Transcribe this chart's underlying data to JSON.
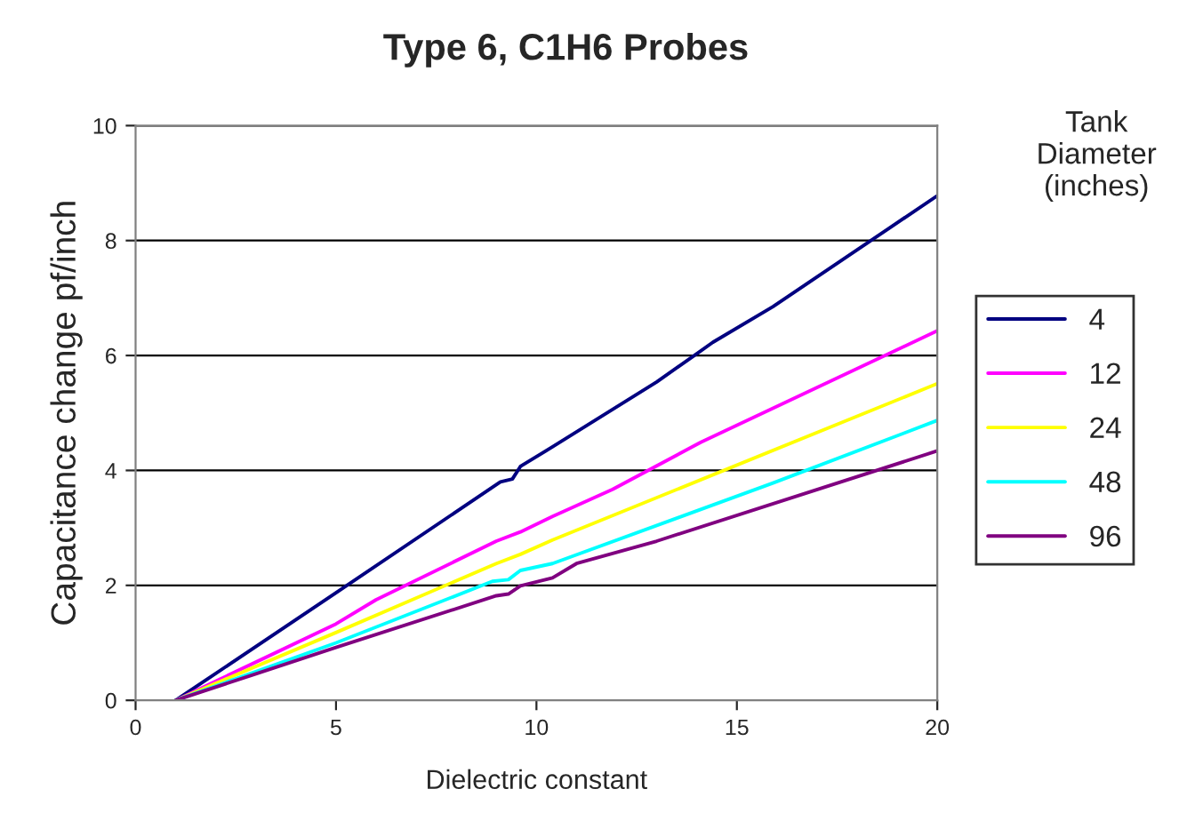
{
  "chart_data": {
    "type": "line",
    "title": "Type 6, C1H6 Probes",
    "xlabel": "Dielectric constant",
    "ylabel": "Capacitance change pf/inch",
    "legend_title": "Tank\nDiameter\n(inches)",
    "xlim": [
      0,
      20
    ],
    "ylim": [
      0,
      10
    ],
    "xticks": [
      0,
      5,
      10,
      15,
      20
    ],
    "yticks": [
      0,
      2,
      4,
      6,
      8,
      10
    ],
    "grid": "y",
    "legend": "right",
    "series": [
      {
        "name": "4",
        "color": "#000080",
        "x": [
          1,
          5,
          9.1,
          9.4,
          9.6,
          10.4,
          13,
          14,
          14.4,
          15.9,
          20
        ],
        "values": [
          0,
          1.87,
          3.8,
          3.85,
          4.07,
          4.41,
          5.54,
          6.03,
          6.23,
          6.85,
          8.78
        ]
      },
      {
        "name": "12",
        "color": "#ff00ff",
        "x": [
          1,
          5,
          6,
          9,
          9.6,
          10.4,
          11.9,
          14.1,
          20
        ],
        "values": [
          0,
          1.33,
          1.75,
          2.77,
          2.93,
          3.2,
          3.67,
          4.49,
          6.43
        ]
      },
      {
        "name": "24",
        "color": "#ffff00",
        "x": [
          1,
          5,
          9,
          9.6,
          10.4,
          20
        ],
        "values": [
          0,
          1.18,
          2.38,
          2.54,
          2.79,
          5.51
        ]
      },
      {
        "name": "48",
        "color": "#00ffff",
        "x": [
          1,
          5,
          8.9,
          9.3,
          9.6,
          10.4,
          15.9,
          20
        ],
        "values": [
          0,
          1.0,
          2.07,
          2.1,
          2.26,
          2.38,
          3.78,
          4.87
        ]
      },
      {
        "name": "96",
        "color": "#800080",
        "x": [
          1,
          5,
          9,
          9.3,
          9.6,
          10.4,
          11,
          13,
          20
        ],
        "values": [
          0,
          0.92,
          1.82,
          1.85,
          1.99,
          2.13,
          2.38,
          2.77,
          4.34
        ]
      }
    ]
  }
}
